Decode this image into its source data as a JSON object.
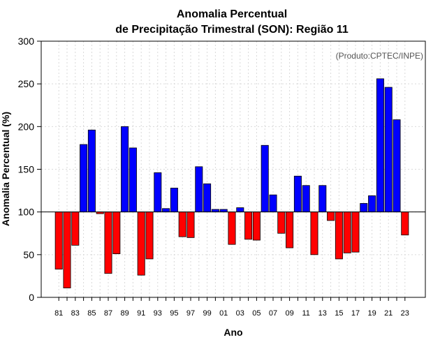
{
  "chart_data": {
    "type": "bar",
    "title_line1": "Anomalia Percentual",
    "title_line2": "de Precipitação Trimestral (SON): Região 11",
    "xlabel": "Ano",
    "ylabel": "Anomalia Percentual (%)",
    "annotation": "(Produto:CPTEC/INPE)",
    "baseline": 100,
    "ylim": [
      0,
      300
    ],
    "yticks": [
      0,
      50,
      100,
      150,
      200,
      250,
      300
    ],
    "xtick_labels": [
      "81",
      "83",
      "85",
      "87",
      "89",
      "91",
      "93",
      "95",
      "97",
      "99",
      "01",
      "03",
      "05",
      "07",
      "09",
      "11",
      "13",
      "15",
      "17",
      "19",
      "21",
      "23"
    ],
    "categories": [
      "1981",
      "1982",
      "1983",
      "1984",
      "1985",
      "1986",
      "1987",
      "1988",
      "1989",
      "1990",
      "1991",
      "1992",
      "1993",
      "1994",
      "1995",
      "1996",
      "1997",
      "1998",
      "1999",
      "2000",
      "2001",
      "2002",
      "2003",
      "2004",
      "2005",
      "2006",
      "2007",
      "2008",
      "2009",
      "2010",
      "2011",
      "2012",
      "2013",
      "2014",
      "2015",
      "2016",
      "2017",
      "2018",
      "2019",
      "2020",
      "2021",
      "2022",
      "2023"
    ],
    "values": [
      33,
      11,
      61,
      179,
      196,
      98,
      28,
      51,
      200,
      175,
      26,
      45,
      146,
      104,
      128,
      71,
      70,
      153,
      133,
      103,
      103,
      62,
      105,
      68,
      67,
      178,
      120,
      75,
      58,
      142,
      131,
      50,
      131,
      90,
      45,
      52,
      53,
      110,
      119,
      256,
      246,
      208,
      73
    ],
    "colors": {
      "above": "#0000ff",
      "below": "#ff0000",
      "grid": "#d9d9d9",
      "axis": "#000000"
    }
  }
}
